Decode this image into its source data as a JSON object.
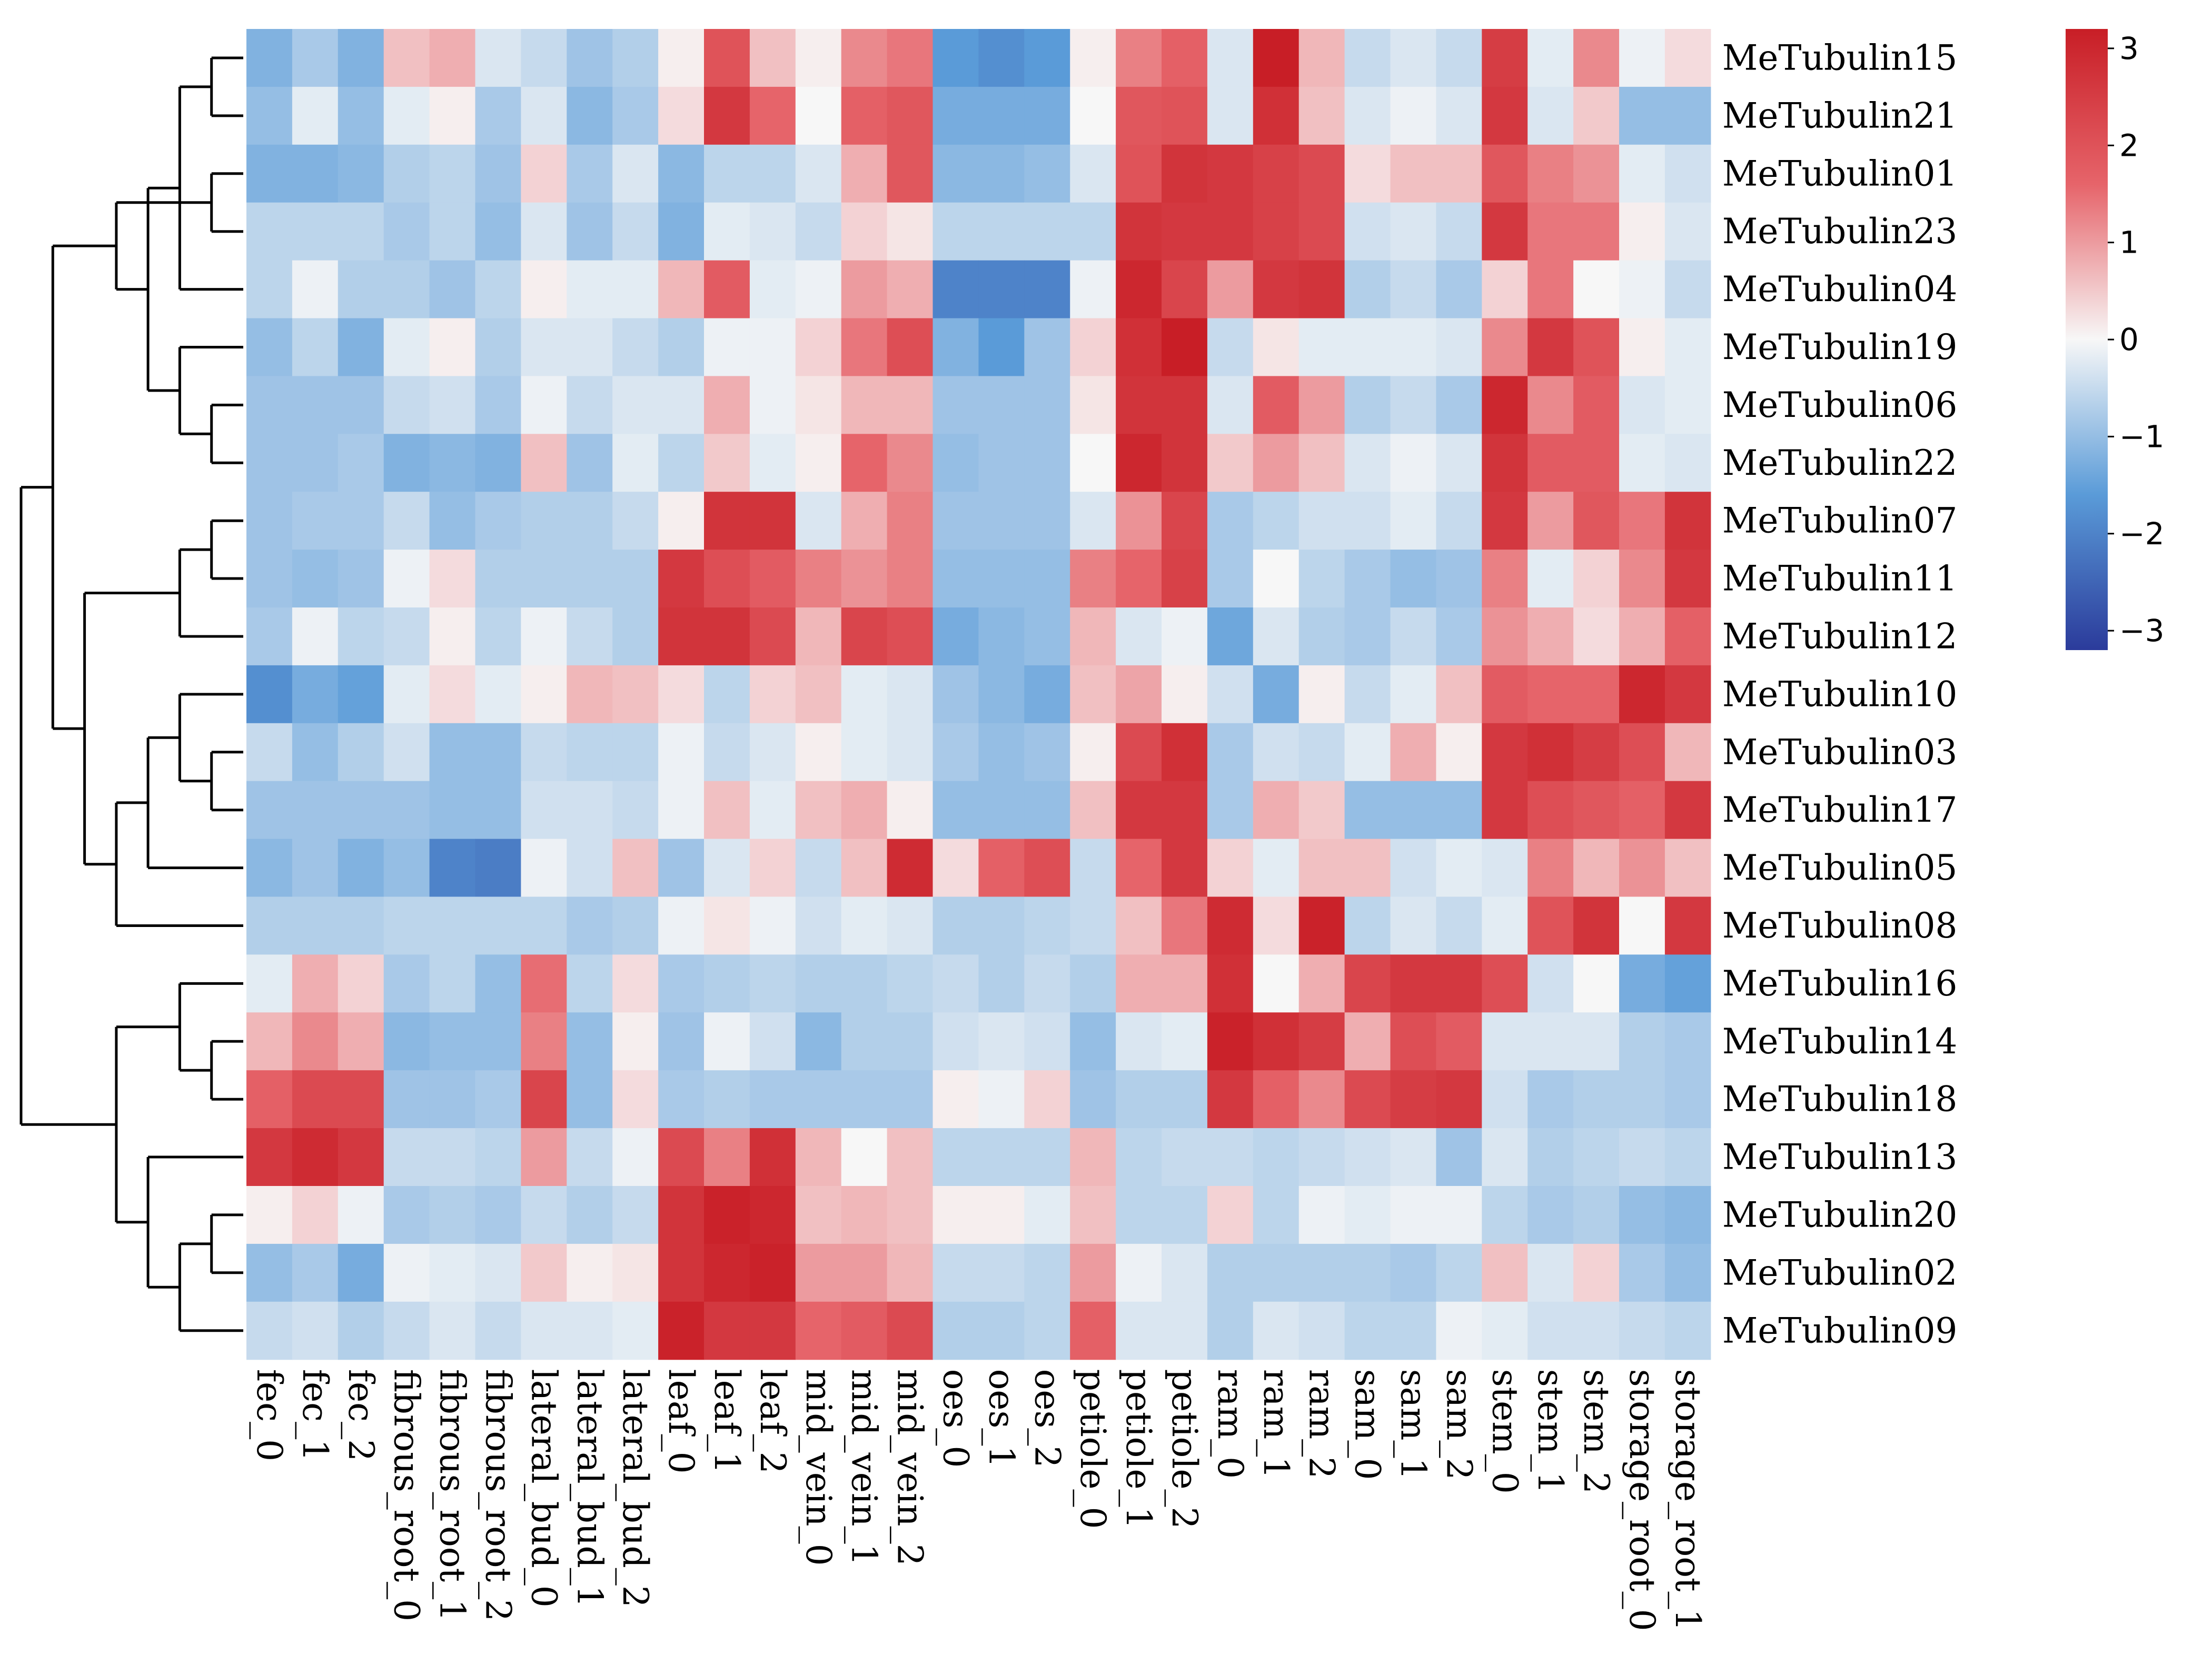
{
  "chart_data": {
    "type": "heatmap",
    "title": "",
    "rows": [
      "MeTubulin15",
      "MeTubulin21",
      "MeTubulin01",
      "MeTubulin23",
      "MeTubulin04",
      "MeTubulin19",
      "MeTubulin06",
      "MeTubulin22",
      "MeTubulin07",
      "MeTubulin11",
      "MeTubulin12",
      "MeTubulin10",
      "MeTubulin03",
      "MeTubulin17",
      "MeTubulin05",
      "MeTubulin08",
      "MeTubulin16",
      "MeTubulin14",
      "MeTubulin18",
      "MeTubulin13",
      "MeTubulin20",
      "MeTubulin02",
      "MeTubulin09"
    ],
    "columns": [
      "fec_0",
      "fec_1",
      "fec_2",
      "fibrous_root_0",
      "fibrous_root_1",
      "fibrous_root_2",
      "lateral_bud_0",
      "lateral_bud_1",
      "lateral_bud_2",
      "leaf_0",
      "leaf_1",
      "leaf_2",
      "mid_vein_0",
      "mid_vein_1",
      "mid_vein_2",
      "oes_0",
      "oes_1",
      "oes_2",
      "petiole_0",
      "petiole_1",
      "petiole_2",
      "ram_0",
      "ram_1",
      "ram_2",
      "sam_0",
      "sam_1",
      "sam_2",
      "stem_0",
      "stem_1",
      "stem_2",
      "storage_root_0",
      "storage_root_1"
    ],
    "values": [
      [
        -1.2,
        -0.8,
        -1.2,
        0.6,
        0.8,
        -0.3,
        -0.5,
        -0.9,
        -0.7,
        0.1,
        2.0,
        0.6,
        0.1,
        1.2,
        1.4,
        -1.6,
        -1.8,
        -1.6,
        0.1,
        1.3,
        1.7,
        -0.3,
        3.2,
        0.7,
        -0.5,
        -0.3,
        -0.5,
        2.5,
        -0.2,
        1.2,
        -0.1,
        0.3
      ],
      [
        -1.0,
        -0.2,
        -1.0,
        -0.2,
        0.1,
        -0.8,
        -0.3,
        -1.1,
        -0.8,
        0.3,
        2.6,
        1.6,
        0.0,
        1.7,
        1.9,
        -1.3,
        -1.3,
        -1.3,
        0.0,
        1.9,
        2.0,
        -0.3,
        2.8,
        0.6,
        -0.3,
        -0.1,
        -0.3,
        2.6,
        -0.3,
        0.5,
        -1.0,
        -1.0
      ],
      [
        -1.2,
        -1.2,
        -1.1,
        -0.7,
        -0.6,
        -0.9,
        0.4,
        -0.8,
        -0.3,
        -1.1,
        -0.6,
        -0.6,
        -0.3,
        0.8,
        1.9,
        -1.1,
        -1.1,
        -1.0,
        -0.3,
        2.0,
        2.7,
        2.6,
        2.4,
        2.2,
        0.3,
        0.6,
        0.6,
        1.9,
        1.3,
        1.1,
        -0.2,
        -0.4
      ],
      [
        -0.6,
        -0.6,
        -0.6,
        -0.8,
        -0.6,
        -1.0,
        -0.3,
        -0.9,
        -0.5,
        -1.2,
        -0.2,
        -0.3,
        -0.5,
        0.4,
        0.2,
        -0.6,
        -0.6,
        -0.6,
        -0.6,
        2.7,
        2.6,
        2.6,
        2.4,
        2.2,
        -0.4,
        -0.3,
        -0.5,
        2.6,
        1.4,
        1.4,
        0.1,
        -0.3
      ],
      [
        -0.6,
        -0.1,
        -0.7,
        -0.7,
        -0.9,
        -0.6,
        0.1,
        -0.2,
        -0.2,
        0.7,
        1.8,
        -0.2,
        -0.1,
        1.0,
        0.8,
        -2.0,
        -2.0,
        -2.0,
        -0.1,
        3.0,
        2.3,
        1.0,
        2.6,
        2.7,
        -0.7,
        -0.5,
        -0.8,
        0.4,
        1.4,
        0.0,
        -0.1,
        -0.5
      ],
      [
        -1.0,
        -0.6,
        -1.2,
        -0.2,
        0.1,
        -0.7,
        -0.3,
        -0.3,
        -0.5,
        -0.7,
        -0.1,
        -0.1,
        0.4,
        1.4,
        2.1,
        -1.2,
        -1.6,
        -0.9,
        0.4,
        2.8,
        3.2,
        -0.5,
        0.2,
        -0.2,
        -0.2,
        -0.2,
        -0.3,
        1.2,
        2.6,
        2.0,
        0.1,
        -0.2
      ],
      [
        -0.9,
        -0.9,
        -0.9,
        -0.5,
        -0.4,
        -0.8,
        -0.1,
        -0.5,
        -0.3,
        -0.3,
        0.8,
        -0.1,
        0.2,
        0.7,
        0.7,
        -0.9,
        -0.9,
        -0.9,
        0.2,
        2.7,
        2.7,
        -0.3,
        1.8,
        1.0,
        -0.7,
        -0.5,
        -0.8,
        3.0,
        1.2,
        1.8,
        -0.3,
        -0.2
      ],
      [
        -0.9,
        -0.9,
        -0.8,
        -1.2,
        -1.1,
        -1.2,
        0.6,
        -0.9,
        -0.2,
        -0.6,
        0.5,
        -0.2,
        0.1,
        1.6,
        1.2,
        -1.0,
        -0.9,
        -0.9,
        0.0,
        3.0,
        2.7,
        0.5,
        1.0,
        0.6,
        -0.3,
        -0.1,
        -0.3,
        2.7,
        1.8,
        1.8,
        -0.2,
        -0.3
      ],
      [
        -0.9,
        -0.8,
        -0.8,
        -0.5,
        -1.0,
        -0.8,
        -0.7,
        -0.7,
        -0.5,
        0.1,
        2.7,
        2.7,
        -0.3,
        0.8,
        1.3,
        -0.9,
        -0.9,
        -0.9,
        -0.3,
        1.1,
        2.3,
        -0.8,
        -0.6,
        -0.4,
        -0.4,
        -0.2,
        -0.5,
        2.6,
        1.0,
        1.9,
        1.4,
        2.7
      ],
      [
        -0.9,
        -1.0,
        -0.9,
        -0.1,
        0.3,
        -0.7,
        -0.7,
        -0.7,
        -0.7,
        2.6,
        2.1,
        1.8,
        1.3,
        1.1,
        1.3,
        -1.0,
        -1.0,
        -1.0,
        1.3,
        1.6,
        2.4,
        -0.8,
        0.0,
        -0.6,
        -0.8,
        -1.0,
        -0.9,
        1.3,
        -0.2,
        0.4,
        1.2,
        2.6
      ],
      [
        -0.8,
        -0.1,
        -0.6,
        -0.5,
        0.1,
        -0.6,
        -0.1,
        -0.5,
        -0.7,
        2.7,
        2.7,
        2.2,
        0.7,
        2.3,
        2.1,
        -1.3,
        -1.1,
        -1.0,
        0.7,
        -0.3,
        -0.1,
        -1.4,
        -0.3,
        -0.7,
        -0.8,
        -0.5,
        -0.8,
        1.1,
        0.8,
        0.3,
        0.8,
        1.7
      ],
      [
        -1.8,
        -1.3,
        -1.5,
        -0.2,
        0.3,
        -0.2,
        0.1,
        0.7,
        0.6,
        0.3,
        -0.6,
        0.4,
        0.6,
        -0.2,
        -0.3,
        -0.9,
        -1.1,
        -1.3,
        0.6,
        0.9,
        0.1,
        -0.4,
        -1.3,
        0.1,
        -0.5,
        -0.2,
        0.6,
        1.8,
        1.6,
        1.6,
        3.0,
        2.6
      ],
      [
        -0.5,
        -1.0,
        -0.7,
        -0.4,
        -1.0,
        -1.0,
        -0.5,
        -0.6,
        -0.6,
        -0.1,
        -0.5,
        -0.3,
        0.1,
        -0.2,
        -0.3,
        -0.8,
        -1.0,
        -0.9,
        0.1,
        2.2,
        2.8,
        -0.8,
        -0.4,
        -0.5,
        -0.2,
        0.8,
        0.1,
        2.6,
        2.8,
        2.5,
        2.1,
        0.7
      ],
      [
        -0.9,
        -0.9,
        -0.9,
        -0.9,
        -1.0,
        -1.0,
        -0.4,
        -0.4,
        -0.5,
        -0.1,
        0.6,
        -0.2,
        0.6,
        0.8,
        0.1,
        -1.0,
        -1.0,
        -1.0,
        0.6,
        2.6,
        2.6,
        -0.8,
        0.8,
        0.5,
        -1.0,
        -1.0,
        -1.0,
        2.6,
        2.1,
        1.9,
        1.7,
        2.6
      ],
      [
        -1.1,
        -0.9,
        -1.2,
        -1.0,
        -2.0,
        -2.1,
        -0.1,
        -0.4,
        0.6,
        -0.9,
        -0.3,
        0.4,
        -0.5,
        0.6,
        2.9,
        0.3,
        1.7,
        2.1,
        -0.5,
        1.6,
        2.6,
        0.4,
        -0.2,
        0.6,
        0.6,
        -0.4,
        -0.2,
        -0.3,
        1.3,
        0.7,
        1.1,
        0.6
      ],
      [
        -0.7,
        -0.7,
        -0.7,
        -0.6,
        -0.6,
        -0.6,
        -0.6,
        -0.8,
        -0.7,
        -0.1,
        0.2,
        -0.1,
        -0.4,
        -0.2,
        -0.3,
        -0.7,
        -0.7,
        -0.6,
        -0.5,
        0.6,
        1.4,
        2.9,
        0.3,
        3.1,
        -0.6,
        -0.3,
        -0.5,
        -0.2,
        2.0,
        2.7,
        0.0,
        2.6
      ],
      [
        -0.2,
        0.8,
        0.4,
        -0.8,
        -0.6,
        -1.0,
        1.5,
        -0.6,
        0.3,
        -0.8,
        -0.7,
        -0.6,
        -0.7,
        -0.7,
        -0.6,
        -0.5,
        -0.7,
        -0.5,
        -0.7,
        0.8,
        0.8,
        2.8,
        0.0,
        0.8,
        2.3,
        2.6,
        2.6,
        2.1,
        -0.4,
        0.0,
        -1.3,
        -1.5
      ],
      [
        0.7,
        1.2,
        0.8,
        -1.1,
        -1.0,
        -1.0,
        1.3,
        -1.0,
        0.1,
        -0.9,
        -0.1,
        -0.4,
        -1.1,
        -0.7,
        -0.7,
        -0.4,
        -0.3,
        -0.4,
        -1.0,
        -0.3,
        -0.2,
        3.1,
        2.8,
        2.5,
        0.8,
        2.1,
        1.8,
        -0.3,
        -0.3,
        -0.3,
        -0.7,
        -0.8
      ],
      [
        1.7,
        2.2,
        2.2,
        -0.9,
        -0.9,
        -0.8,
        2.3,
        -1.0,
        0.3,
        -0.8,
        -0.7,
        -0.8,
        -0.8,
        -0.8,
        -0.8,
        0.1,
        -0.1,
        0.4,
        -0.9,
        -0.7,
        -0.7,
        2.6,
        1.7,
        1.2,
        2.2,
        2.5,
        2.6,
        -0.4,
        -0.8,
        -0.7,
        -0.7,
        -0.8
      ],
      [
        2.6,
        2.9,
        2.6,
        -0.5,
        -0.5,
        -0.6,
        1.0,
        -0.5,
        -0.1,
        2.2,
        1.3,
        2.8,
        0.7,
        0.0,
        0.6,
        -0.6,
        -0.6,
        -0.6,
        0.7,
        -0.6,
        -0.5,
        -0.5,
        -0.6,
        -0.5,
        -0.4,
        -0.3,
        -0.9,
        -0.3,
        -0.7,
        -0.6,
        -0.5,
        -0.6
      ],
      [
        0.1,
        0.4,
        -0.1,
        -0.8,
        -0.7,
        -0.8,
        -0.5,
        -0.7,
        -0.5,
        2.7,
        3.1,
        3.0,
        0.6,
        0.7,
        0.6,
        0.1,
        0.1,
        -0.2,
        0.6,
        -0.6,
        -0.6,
        0.4,
        -0.6,
        -0.1,
        -0.2,
        -0.1,
        -0.1,
        -0.6,
        -0.8,
        -0.7,
        -1.0,
        -1.1
      ],
      [
        -1.0,
        -0.8,
        -1.3,
        -0.1,
        -0.2,
        -0.3,
        0.5,
        0.1,
        0.2,
        2.7,
        3.0,
        3.1,
        1.0,
        1.0,
        0.7,
        -0.5,
        -0.5,
        -0.6,
        1.0,
        -0.1,
        -0.3,
        -0.7,
        -0.7,
        -0.7,
        -0.7,
        -0.8,
        -0.6,
        0.6,
        -0.3,
        0.4,
        -0.8,
        -1.0
      ],
      [
        -0.5,
        -0.4,
        -0.7,
        -0.5,
        -0.3,
        -0.5,
        -0.3,
        -0.3,
        -0.2,
        3.1,
        2.6,
        2.6,
        1.6,
        1.8,
        2.2,
        -0.7,
        -0.7,
        -0.6,
        1.7,
        -0.3,
        -0.3,
        -0.7,
        -0.3,
        -0.4,
        -0.6,
        -0.6,
        -0.1,
        -0.2,
        -0.4,
        -0.4,
        -0.5,
        -0.6
      ]
    ],
    "colorbar": {
      "range": [
        -3.2,
        3.2
      ],
      "ticks": [
        3,
        2,
        1,
        0,
        -1,
        -2,
        -3
      ],
      "tick_labels": [
        "3",
        "2",
        "1",
        "0",
        "−1",
        "−2",
        "−3"
      ]
    },
    "colors": {
      "low": "#2b3b9b",
      "mid_low": "#5a9bd8",
      "mid": "#f7f7f7",
      "mid_high": "#e6646a",
      "high": "#c81e26"
    },
    "row_dendrogram": [
      [
        0,
        1
      ],
      [
        2,
        3
      ],
      [
        23,
        4
      ],
      [
        6,
        7
      ],
      [
        26,
        5
      ],
      [
        25,
        27
      ],
      [
        24,
        28
      ],
      [
        8,
        9
      ],
      [
        30,
        10
      ],
      [
        12,
        13
      ],
      [
        32,
        11
      ],
      [
        33,
        14
      ],
      [
        34,
        15
      ],
      [
        31,
        35
      ],
      [
        29,
        36
      ],
      [
        17,
        18
      ],
      [
        38,
        16
      ],
      [
        20,
        21
      ],
      [
        40,
        22
      ],
      [
        41,
        19
      ],
      [
        39,
        42
      ],
      [
        37,
        43
      ]
    ]
  }
}
